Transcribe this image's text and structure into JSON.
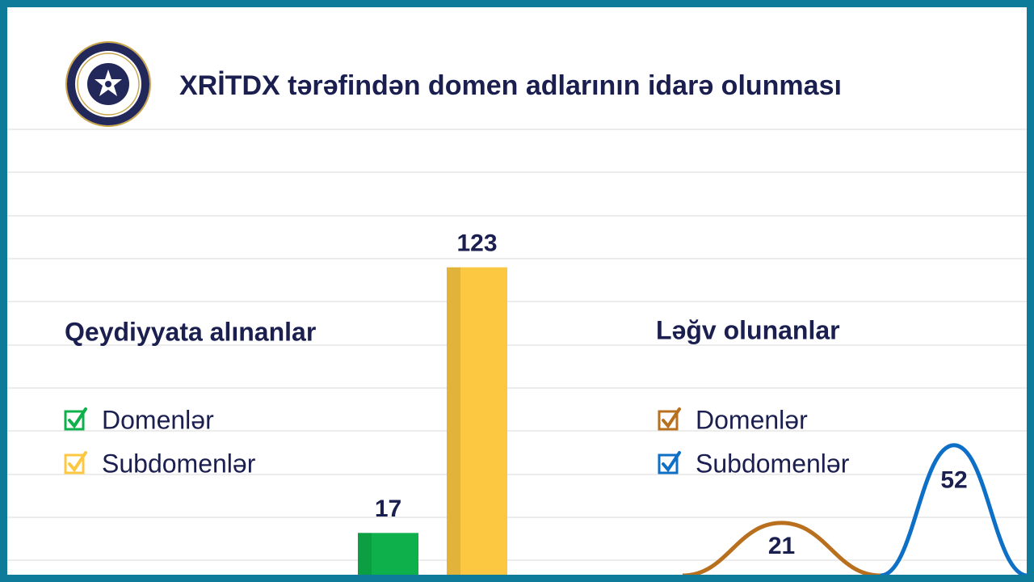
{
  "header": {
    "title": "XRİTDX tərəfindən domen adlarının idarə olunması"
  },
  "chart_data": [
    {
      "type": "bar",
      "title": "Qeydiyyata alınanlar",
      "series": [
        {
          "name": "Domenlər",
          "color": "#0db04b",
          "values": [
            17
          ]
        },
        {
          "name": "Subdomenlər",
          "color": "#fcc842",
          "values": [
            123
          ]
        }
      ]
    },
    {
      "type": "bell",
      "title": "Ləğv olunanlar",
      "series": [
        {
          "name": "Domenlər",
          "color": "#b8701e",
          "values": [
            21
          ]
        },
        {
          "name": "Subdomenlər",
          "color": "#0d6fc5",
          "values": [
            52
          ]
        }
      ]
    }
  ]
}
